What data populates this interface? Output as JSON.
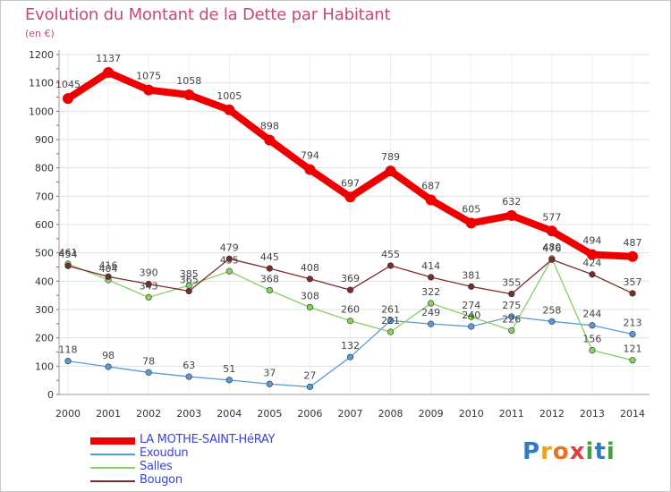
{
  "title": "Evolution du Montant de la Dette par Habitant",
  "subtitle": "(en €)",
  "brand": "Proxiti",
  "colors": {
    "title": "#c8467c",
    "grid": "#e0e0e0",
    "axis_tick_text": "#333333"
  },
  "chart_data": {
    "type": "line",
    "x": [
      "2000",
      "2001",
      "2002",
      "2003",
      "2004",
      "2005",
      "2006",
      "2007",
      "2008",
      "2009",
      "2010",
      "2011",
      "2012",
      "2013",
      "2014"
    ],
    "ylim": [
      0,
      1200
    ],
    "yticks": [
      0,
      100,
      200,
      300,
      400,
      500,
      600,
      700,
      800,
      900,
      1000,
      1100,
      1200
    ],
    "grid": true,
    "legend": "bottom-left",
    "series": [
      {
        "name": "LA MOTHE-SAINT-HéRAY",
        "color": "#ee0000",
        "values": [
          1045,
          1137,
          1075,
          1058,
          1005,
          898,
          794,
          697,
          789,
          687,
          605,
          632,
          577,
          494,
          487
        ]
      },
      {
        "name": "Exoudun",
        "color": "#5b9bd5",
        "values": [
          118,
          98,
          78,
          63,
          51,
          37,
          27,
          132,
          261,
          249,
          240,
          275,
          258,
          244,
          213
        ]
      },
      {
        "name": "Salles",
        "color": "#88d060",
        "values": [
          461,
          404,
          343,
          385,
          435,
          368,
          308,
          260,
          221,
          322,
          274,
          226,
          480,
          156,
          121
        ]
      },
      {
        "name": "Bougon",
        "color": "#7a2b2b",
        "values": [
          454,
          416,
          390,
          365,
          479,
          445,
          408,
          369,
          455,
          414,
          381,
          355,
          476,
          424,
          357
        ]
      }
    ]
  }
}
